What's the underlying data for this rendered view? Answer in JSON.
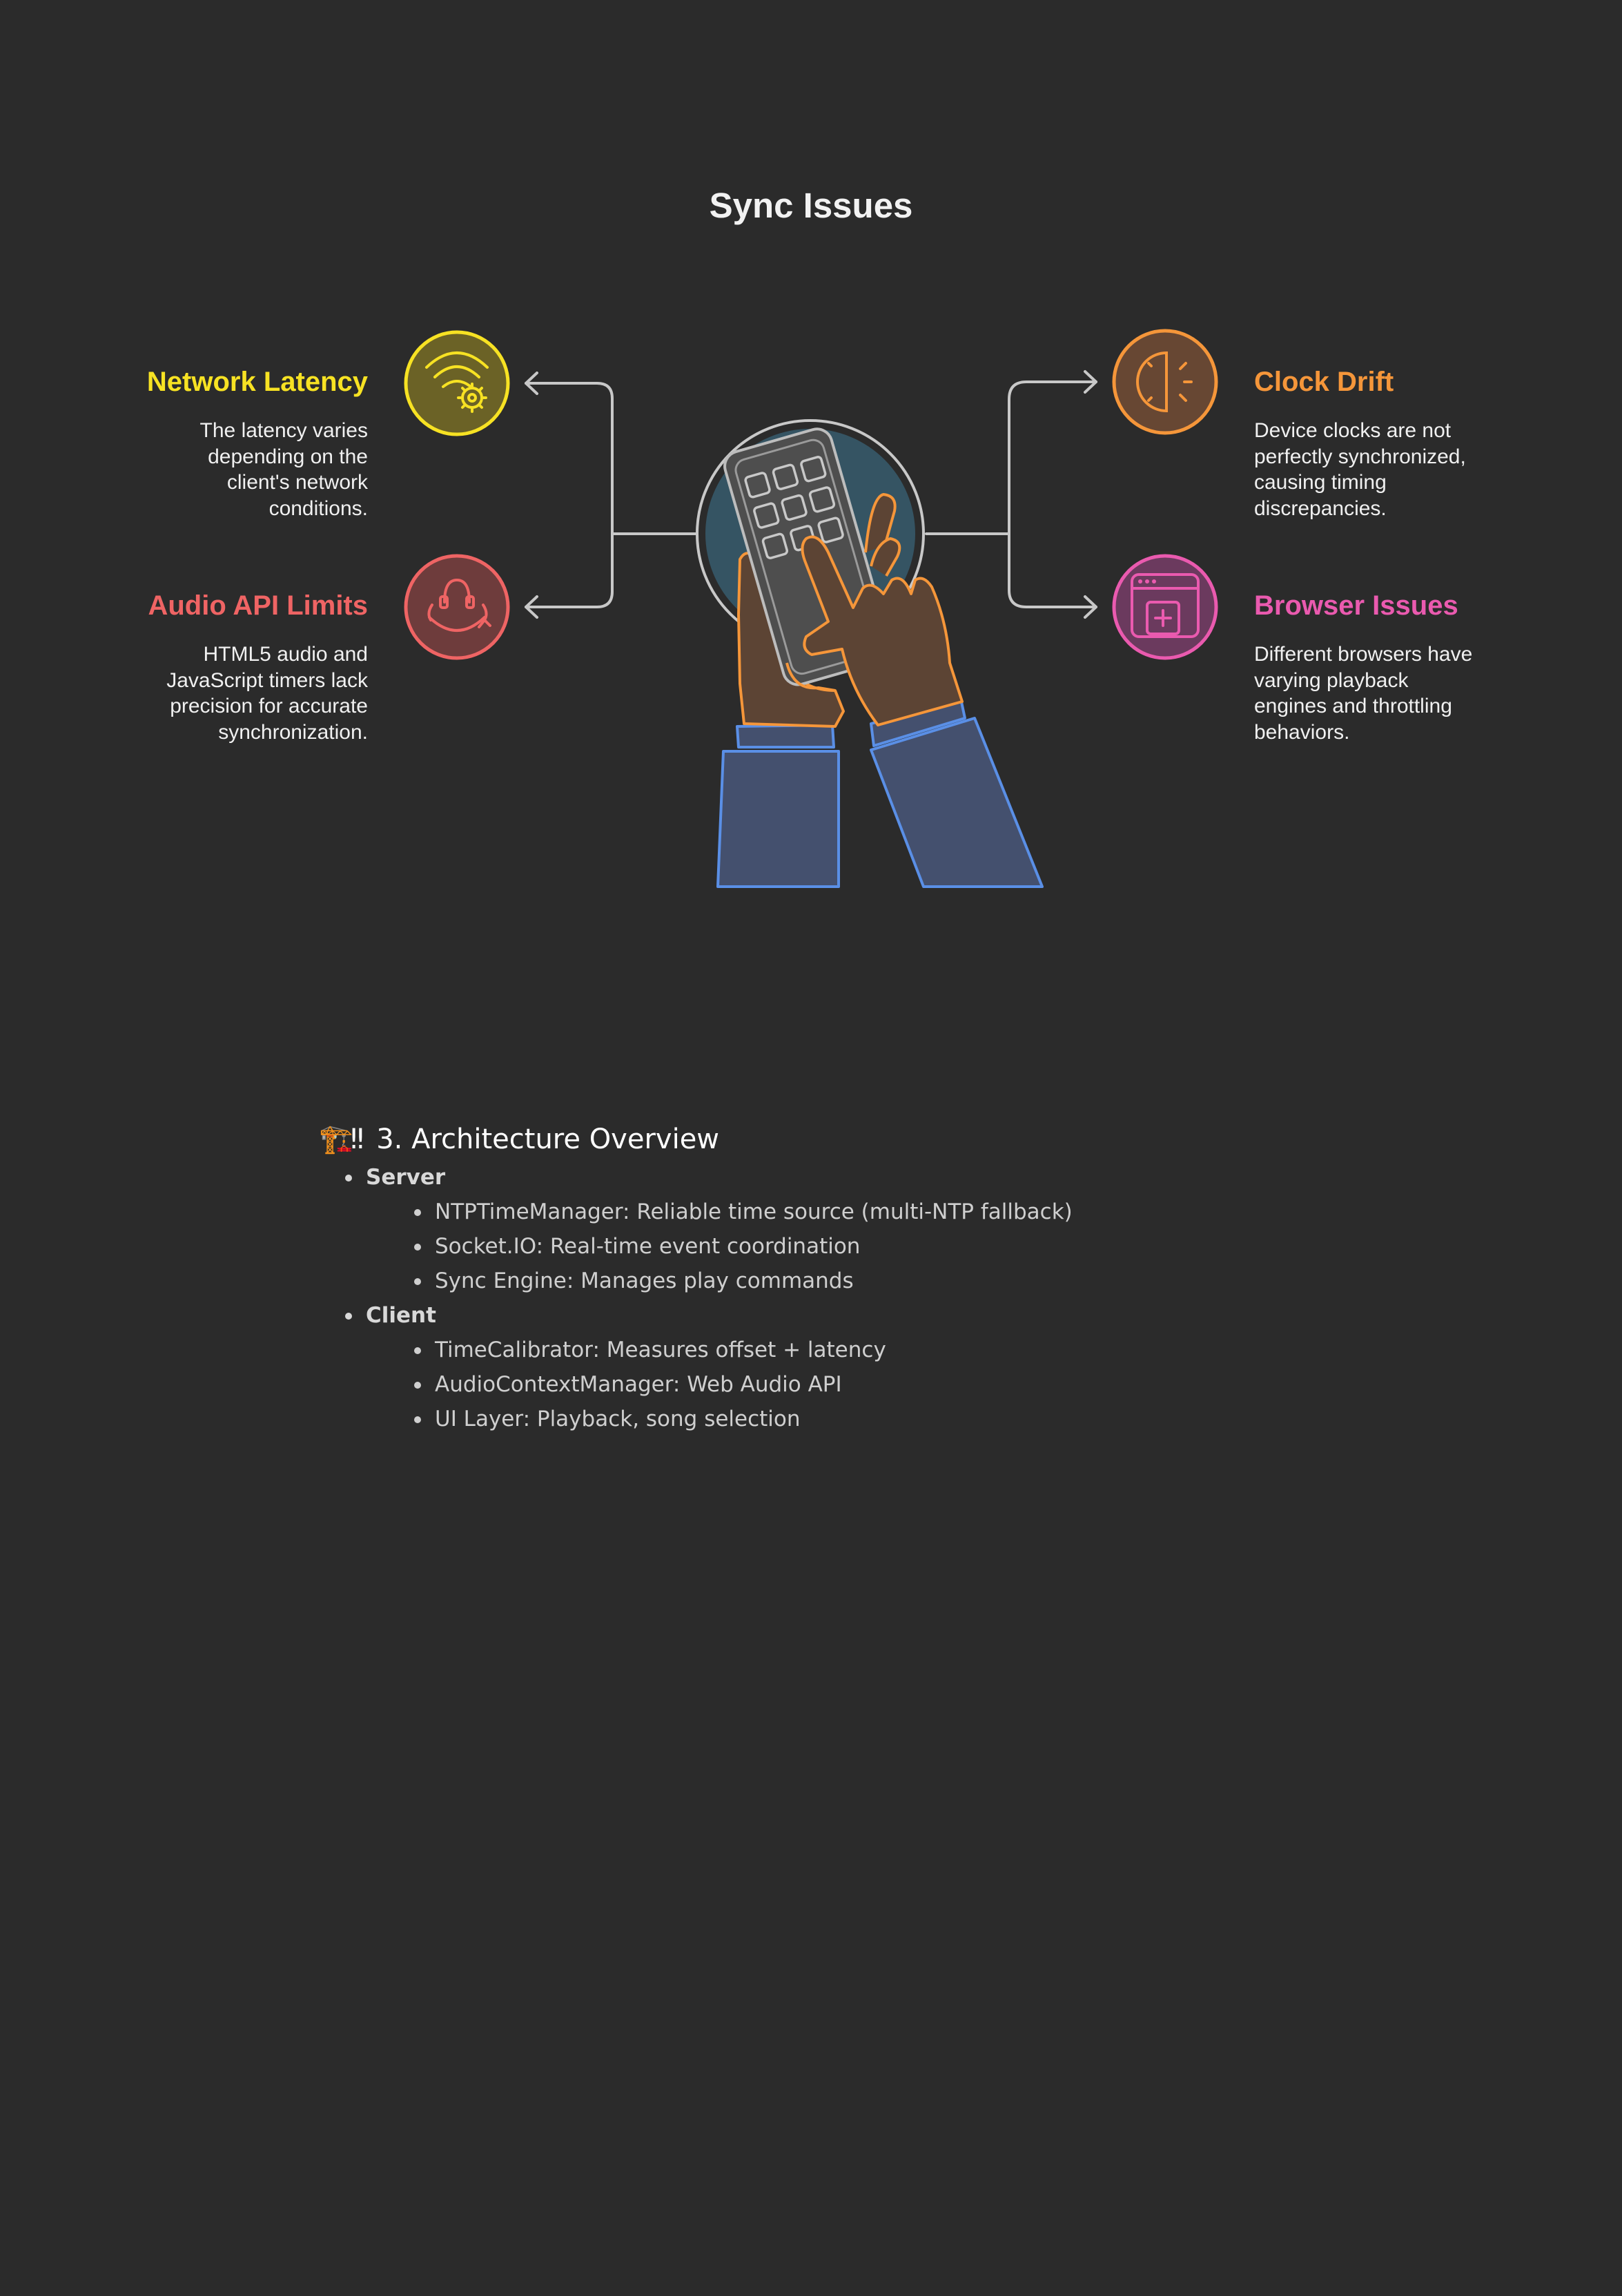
{
  "diagram": {
    "title": "Sync Issues",
    "cards": {
      "network": {
        "title": "Network Latency",
        "desc": [
          "The latency varies",
          "depending on the",
          "client's network",
          "conditions."
        ],
        "color": "#f7e223",
        "icon": "wifi-gear-icon"
      },
      "audio": {
        "title": "Audio API Limits",
        "desc": [
          "HTML5 audio and",
          "JavaScript timers lack",
          "precision for accurate",
          "synchronization."
        ],
        "color": "#ef6464",
        "icon": "headset-cycle-icon"
      },
      "clock": {
        "title": "Clock Drift",
        "desc": [
          "Device clocks are not",
          "perfectly synchronized,",
          "causing timing",
          "discrepancies."
        ],
        "color": "#f5963a",
        "icon": "clock-half-icon"
      },
      "browser": {
        "title": "Browser Issues",
        "desc": [
          "Different browsers have",
          "varying playback",
          "engines and throttling",
          "behaviors."
        ],
        "color": "#ea5aaf",
        "icon": "browser-window-icon"
      }
    },
    "center_icon": "hands-calculator-icon"
  },
  "section": {
    "emoji": "🏗️‼",
    "heading": "3. Architecture Overview",
    "groups": [
      {
        "label": "Server",
        "items": [
          "NTPTimeManager: Reliable time source (multi-NTP fallback)",
          "Socket.IO: Real-time event coordination",
          "Sync Engine: Manages play commands"
        ]
      },
      {
        "label": "Client",
        "items": [
          "TimeCalibrator: Measures offset + latency",
          "AudioContextManager: Web Audio API",
          "UI Layer: Playback, song selection"
        ]
      }
    ]
  }
}
